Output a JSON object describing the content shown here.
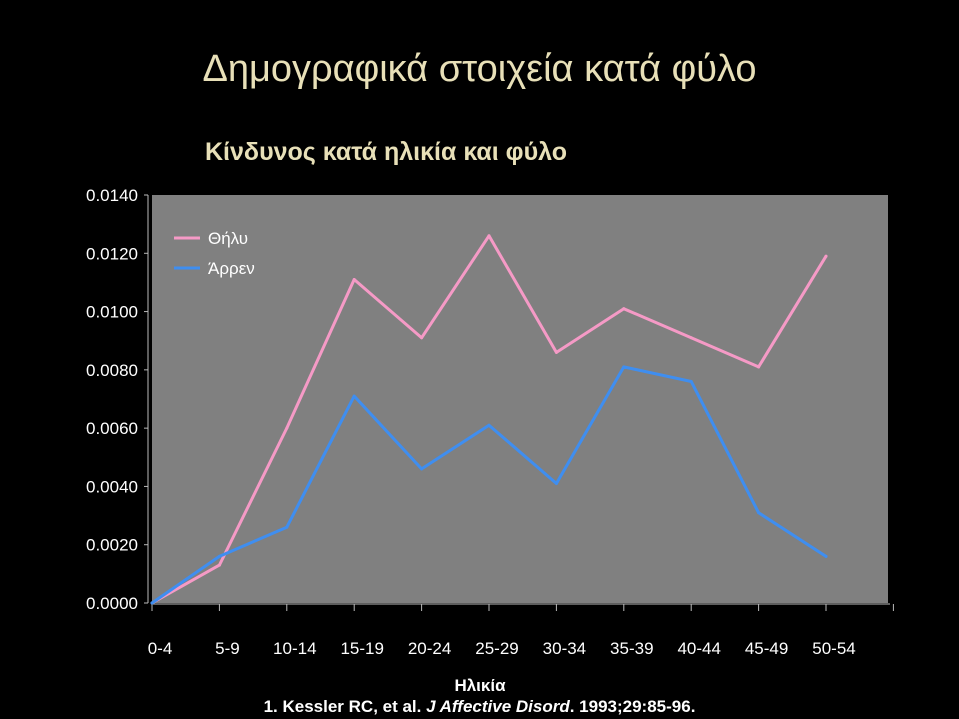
{
  "slide": {
    "title": "Δημογραφικά στοιχεία κατά φύλο",
    "citation_authors": "1. Kessler RC, et al. ",
    "citation_journal": "J Affective Disord",
    "citation_rest": ". 1993;29:85-96."
  },
  "colors": {
    "background": "#000000",
    "plot_area": "#808080",
    "female": "#f59ac6",
    "male": "#3f8ef0"
  },
  "chart_data": {
    "type": "line",
    "title": "Κίνδυνος κατά ηλικία και φύλο",
    "xlabel": "Ηλικία",
    "ylabel": "",
    "categories": [
      "0-4",
      "5-9",
      "10-14",
      "15-19",
      "20-24",
      "25-29",
      "30-34",
      "35-39",
      "40-44",
      "45-49",
      "50-54"
    ],
    "ylim": [
      0.0,
      0.014
    ],
    "yticks": [
      "0.0000",
      "0.0020",
      "0.0040",
      "0.0060",
      "0.0080",
      "0.0100",
      "0.0120",
      "0.0140"
    ],
    "grid": false,
    "legend_position": "top-left",
    "series": [
      {
        "name": "Θήλυ",
        "color": "#f59ac6",
        "values": [
          0.0,
          0.0013,
          0.006,
          0.0111,
          0.0091,
          0.0126,
          0.0086,
          0.0101,
          0.0091,
          0.0081,
          0.0119
        ]
      },
      {
        "name": "Άρρεν",
        "color": "#3f8ef0",
        "values": [
          0.0,
          0.0016,
          0.0026,
          0.0071,
          0.0046,
          0.0061,
          0.0041,
          0.0081,
          0.0076,
          0.0031,
          0.0016
        ]
      }
    ]
  }
}
